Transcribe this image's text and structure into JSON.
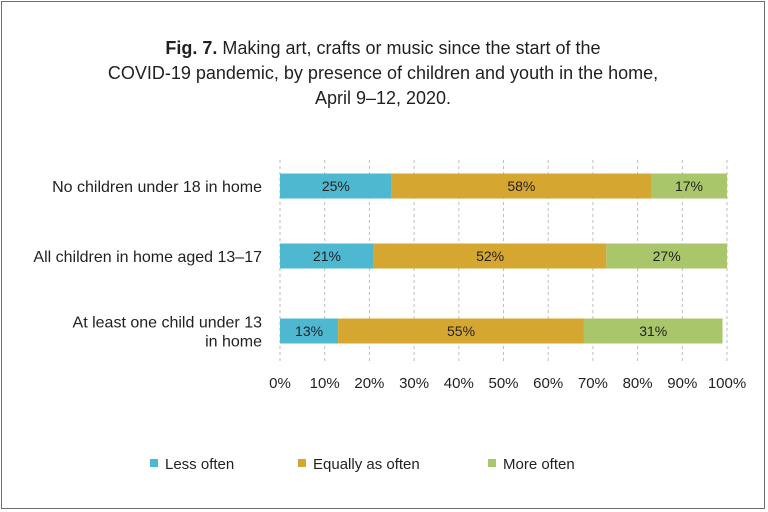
{
  "title": {
    "fig_label": "Fig. 7.",
    "line1": " Making art, crafts or music since the start of the",
    "line2": "COVID-19 pandemic, by presence of children and youth in the home,",
    "line3": "April 9–12, 2020."
  },
  "chart_data": {
    "type": "bar",
    "orientation": "horizontal",
    "stacked": true,
    "title": "Fig. 7. Making art, crafts or music since the start of the COVID-19 pandemic, by presence of children and youth in the home, April 9–12, 2020.",
    "categories": [
      [
        "No children under 18 in home"
      ],
      [
        "All children in home aged 13–17"
      ],
      [
        "At least one child under 13",
        "in home"
      ]
    ],
    "series": [
      {
        "name": "Less often",
        "color": "#4db8d0",
        "values": [
          25,
          21,
          13
        ],
        "labels": [
          "25%",
          "21%",
          "13%"
        ]
      },
      {
        "name": "Equally as often",
        "color": "#d6a730",
        "values": [
          58,
          52,
          55
        ],
        "labels": [
          "58%",
          "52%",
          "55%"
        ]
      },
      {
        "name": "More often",
        "color": "#a9c66b",
        "values": [
          17,
          27,
          31
        ],
        "labels": [
          "17%",
          "27%",
          "31%"
        ]
      }
    ],
    "xlim": [
      0,
      100
    ],
    "xticks": [
      "0%",
      "10%",
      "20%",
      "30%",
      "40%",
      "50%",
      "60%",
      "70%",
      "80%",
      "90%",
      "100%"
    ],
    "grid": "vertical dashed",
    "legend_position": "bottom"
  }
}
